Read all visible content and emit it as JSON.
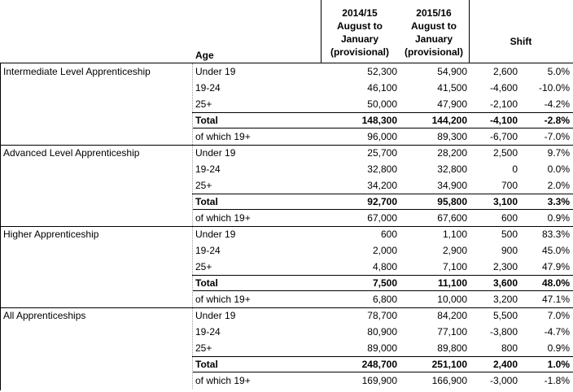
{
  "header": {
    "age_label": "Age",
    "col1": [
      "2014/15",
      "August to",
      "January",
      "(provisional)"
    ],
    "col2": [
      "2015/16",
      "August to",
      "January",
      "(provisional)"
    ],
    "shift_label": "Shift"
  },
  "groups": [
    {
      "name": "Intermediate Level Apprenticeship",
      "rows": [
        {
          "age": "Under 19",
          "v1": "52,300",
          "v2": "54,900",
          "shift": "2,600",
          "pct": "5.0%",
          "bold": false
        },
        {
          "age": "19-24",
          "v1": "46,100",
          "v2": "41,500",
          "shift": "-4,600",
          "pct": "-10.0%",
          "bold": false
        },
        {
          "age": "25+",
          "v1": "50,000",
          "v2": "47,900",
          "shift": "-2,100",
          "pct": "-4.2%",
          "bold": false
        },
        {
          "age": "Total",
          "v1": "148,300",
          "v2": "144,200",
          "shift": "-4,100",
          "pct": "-2.8%",
          "bold": true
        },
        {
          "age": "of which 19+",
          "v1": "96,000",
          "v2": "89,300",
          "shift": "-6,700",
          "pct": "-7.0%",
          "bold": false
        }
      ]
    },
    {
      "name": "Advanced Level Apprenticeship",
      "rows": [
        {
          "age": "Under 19",
          "v1": "25,700",
          "v2": "28,200",
          "shift": "2,500",
          "pct": "9.7%",
          "bold": false
        },
        {
          "age": "19-24",
          "v1": "32,800",
          "v2": "32,800",
          "shift": "0",
          "pct": "0.0%",
          "bold": false
        },
        {
          "age": "25+",
          "v1": "34,200",
          "v2": "34,900",
          "shift": "700",
          "pct": "2.0%",
          "bold": false
        },
        {
          "age": "Total",
          "v1": "92,700",
          "v2": "95,800",
          "shift": "3,100",
          "pct": "3.3%",
          "bold": true
        },
        {
          "age": "of which 19+",
          "v1": "67,000",
          "v2": "67,600",
          "shift": "600",
          "pct": "0.9%",
          "bold": false
        }
      ]
    },
    {
      "name": "Higher Apprenticeship",
      "rows": [
        {
          "age": "Under 19",
          "v1": "600",
          "v2": "1,100",
          "shift": "500",
          "pct": "83.3%",
          "bold": false
        },
        {
          "age": "19-24",
          "v1": "2,000",
          "v2": "2,900",
          "shift": "900",
          "pct": "45.0%",
          "bold": false
        },
        {
          "age": "25+",
          "v1": "4,800",
          "v2": "7,100",
          "shift": "2,300",
          "pct": "47.9%",
          "bold": false
        },
        {
          "age": "Total",
          "v1": "7,500",
          "v2": "11,100",
          "shift": "3,600",
          "pct": "48.0%",
          "bold": true
        },
        {
          "age": "of which 19+",
          "v1": "6,800",
          "v2": "10,000",
          "shift": "3,200",
          "pct": "47.1%",
          "bold": false
        }
      ]
    },
    {
      "name": "All Apprenticeships",
      "rows": [
        {
          "age": "Under 19",
          "v1": "78,700",
          "v2": "84,200",
          "shift": "5,500",
          "pct": "7.0%",
          "bold": false
        },
        {
          "age": "19-24",
          "v1": "80,900",
          "v2": "77,100",
          "shift": "-3,800",
          "pct": "-4.7%",
          "bold": false
        },
        {
          "age": "25+",
          "v1": "89,000",
          "v2": "89,800",
          "shift": "800",
          "pct": "0.9%",
          "bold": false
        },
        {
          "age": "Total",
          "v1": "248,700",
          "v2": "251,100",
          "shift": "2,400",
          "pct": "1.0%",
          "bold": true
        },
        {
          "age": "of which 19+",
          "v1": "169,900",
          "v2": "166,900",
          "shift": "-3,000",
          "pct": "-1.8%",
          "bold": false
        }
      ]
    }
  ]
}
